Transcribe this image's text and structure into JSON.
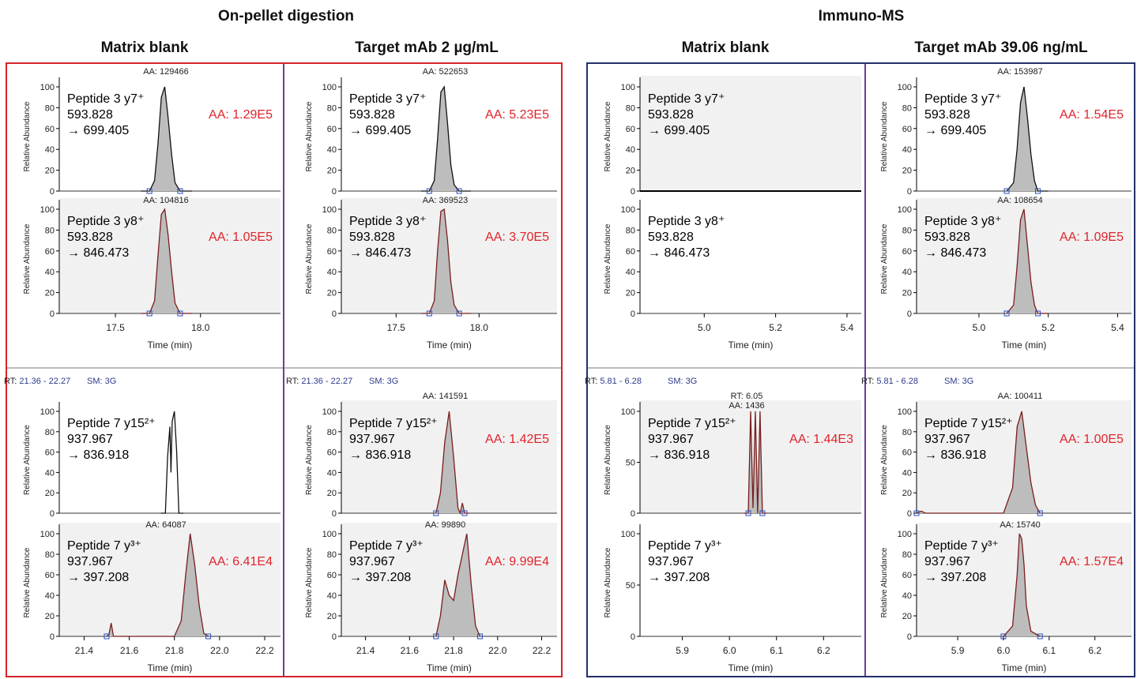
{
  "header": {
    "left_title": "On-pellet digestion",
    "right_title": "Immuno-MS",
    "col1": "Matrix blank",
    "col2": "Target mAb 2 µg/mL",
    "col3": "Matrix blank",
    "col4": "Target mAb 39.06 ng/mL"
  },
  "colors": {
    "left_frame": "#d4242b",
    "right_frame": "#23306b",
    "divider": "#6a3d9a",
    "annotation": "#e0242b",
    "fill": "#bdbdbd"
  },
  "chart_data": [
    {
      "id": "A",
      "type": "line",
      "xlabel": "Time (min)",
      "ylabel": "Relative Abundance",
      "xlim": [
        17.17,
        18.47
      ],
      "xticks": [
        "17.5",
        "18.0"
      ],
      "yticks": [
        "0",
        "20",
        "40",
        "60",
        "80",
        "100"
      ],
      "panels": [
        {
          "col": 1,
          "traces": [
            {
              "top_label": "AA: 129466",
              "peptide": "Peptide 3 y7⁺",
              "precursor": "593.828",
              "fragment": "→ 699.405",
              "aa": "AA: 1.29E5",
              "shaded": false,
              "x": [
                17.65,
                17.7,
                17.73,
                17.75,
                17.77,
                17.79,
                17.81,
                17.83,
                17.85,
                17.88,
                17.95
              ],
              "y": [
                0,
                0,
                10,
                45,
                90,
                100,
                70,
                35,
                8,
                0,
                0
              ]
            },
            {
              "top_label": "AA: 104816",
              "peptide": "Peptide 3 y8⁺",
              "precursor": "593.828",
              "fragment": "→ 846.473",
              "aa": "AA: 1.05E5",
              "shaded": true,
              "x": [
                17.65,
                17.7,
                17.73,
                17.75,
                17.77,
                17.79,
                17.81,
                17.83,
                17.85,
                17.88,
                17.95
              ],
              "y": [
                0,
                0,
                12,
                55,
                95,
                100,
                75,
                40,
                10,
                0,
                0
              ]
            }
          ]
        },
        {
          "col": 2,
          "traces": [
            {
              "top_label": "AA: 522653",
              "peptide": "Peptide 3 y7⁺",
              "precursor": "593.828",
              "fragment": "→ 699.405",
              "aa": "AA: 5.23E5",
              "shaded": false,
              "x": [
                17.65,
                17.7,
                17.73,
                17.75,
                17.77,
                17.79,
                17.81,
                17.83,
                17.85,
                17.88,
                17.95
              ],
              "y": [
                0,
                0,
                10,
                50,
                95,
                100,
                65,
                25,
                6,
                0,
                0
              ]
            },
            {
              "top_label": "AA: 369523",
              "peptide": "Peptide 3 y8⁺",
              "precursor": "593.828",
              "fragment": "→ 846.473",
              "aa": "AA: 3.70E5",
              "shaded": true,
              "x": [
                17.65,
                17.7,
                17.73,
                17.75,
                17.77,
                17.79,
                17.81,
                17.83,
                17.85,
                17.88,
                17.95
              ],
              "y": [
                0,
                0,
                12,
                60,
                98,
                100,
                70,
                30,
                8,
                0,
                0
              ]
            }
          ]
        }
      ]
    },
    {
      "id": "B",
      "type": "line",
      "xlabel": "Time (min)",
      "ylabel": "Relative Abundance",
      "xlim": [
        4.82,
        5.44
      ],
      "xticks": [
        "5.0",
        "5.2",
        "5.4"
      ],
      "yticks": [
        "0",
        "20",
        "40",
        "60",
        "80",
        "100"
      ],
      "panels": [
        {
          "col": 3,
          "traces": [
            {
              "top_label": "",
              "peptide": "Peptide 3 y7⁺",
              "precursor": "593.828",
              "fragment": "→ 699.405",
              "aa": "",
              "shaded": true,
              "x": [
                4.82,
                5.44
              ],
              "y": [
                0,
                0
              ]
            },
            {
              "top_label": "",
              "peptide": "Peptide 3 y8⁺",
              "precursor": "593.828",
              "fragment": "→ 846.473",
              "aa": "",
              "shaded": false,
              "x": [
                4.82,
                5.44
              ],
              "y": [
                0,
                0
              ]
            }
          ]
        },
        {
          "col": 4,
          "traces": [
            {
              "top_label": "AA: 153987",
              "peptide": "Peptide 3 y7⁺",
              "precursor": "593.828",
              "fragment": "→ 699.405",
              "aa": "AA: 1.54E5",
              "shaded": false,
              "x": [
                5.08,
                5.1,
                5.11,
                5.12,
                5.13,
                5.14,
                5.15,
                5.16,
                5.17,
                5.2
              ],
              "y": [
                0,
                8,
                40,
                85,
                100,
                70,
                35,
                10,
                0,
                0
              ]
            },
            {
              "top_label": "AA: 108654",
              "peptide": "Peptide 3 y8⁺",
              "precursor": "593.828",
              "fragment": "→ 846.473",
              "aa": "AA: 1.09E5",
              "shaded": true,
              "x": [
                5.08,
                5.1,
                5.11,
                5.12,
                5.13,
                5.14,
                5.15,
                5.16,
                5.17,
                5.2
              ],
              "y": [
                0,
                8,
                45,
                90,
                100,
                65,
                30,
                8,
                0,
                0
              ]
            }
          ]
        }
      ]
    },
    {
      "id": "C",
      "type": "line",
      "xlabel": "Time (min)",
      "ylabel": "Relative Abundance",
      "range_label": "RT: 21.36 - 22.27",
      "sm_label": "SM: 3G",
      "xlim": [
        21.29,
        22.27
      ],
      "xticks": [
        "21.4",
        "21.6",
        "21.8",
        "22.0",
        "22.2"
      ],
      "yticks": [
        "0",
        "20",
        "40",
        "60",
        "80",
        "100"
      ],
      "panels": [
        {
          "col": 1,
          "traces": [
            {
              "top_label": "",
              "peptide": "Peptide 7 y15²⁺",
              "precursor": "937.967",
              "fragment": "→ 836.918",
              "aa": "",
              "shaded": false,
              "x": [
                21.74,
                21.76,
                21.77,
                21.78,
                21.785,
                21.79,
                21.8,
                21.81,
                21.82,
                21.84
              ],
              "y": [
                0,
                0,
                55,
                85,
                40,
                90,
                100,
                60,
                0,
                0
              ]
            },
            {
              "top_label": "AA: 64087",
              "peptide": "Peptide 7 y³⁺",
              "precursor": "937.967",
              "fragment": "→ 397.208",
              "aa": "AA: 6.41E4",
              "shaded": true,
              "x": [
                21.5,
                21.51,
                21.52,
                21.53,
                21.8,
                21.83,
                21.85,
                21.87,
                21.89,
                21.91,
                21.93,
                21.95
              ],
              "y": [
                0,
                2,
                13,
                0,
                0,
                15,
                60,
                100,
                70,
                30,
                3,
                0
              ]
            }
          ]
        },
        {
          "col": 2,
          "traces": [
            {
              "top_label": "AA: 141591",
              "peptide": "Peptide 7 y15²⁺",
              "precursor": "937.967",
              "fragment": "→ 836.918",
              "aa": "AA: 1.42E5",
              "shaded": true,
              "x": [
                21.72,
                21.74,
                21.76,
                21.78,
                21.8,
                21.82,
                21.83,
                21.84,
                21.85,
                21.87
              ],
              "y": [
                0,
                20,
                70,
                100,
                55,
                5,
                0,
                10,
                0,
                0
              ]
            },
            {
              "top_label": "AA: 99890",
              "peptide": "Peptide 7 y³⁺",
              "precursor": "937.967",
              "fragment": "→ 397.208",
              "aa": "AA: 9.99E4",
              "shaded": true,
              "x": [
                21.72,
                21.74,
                21.76,
                21.78,
                21.8,
                21.82,
                21.84,
                21.86,
                21.88,
                21.9,
                21.92
              ],
              "y": [
                0,
                20,
                55,
                40,
                35,
                60,
                80,
                100,
                50,
                10,
                0
              ]
            }
          ]
        }
      ]
    },
    {
      "id": "D",
      "type": "line",
      "xlabel": "Time (min)",
      "ylabel": "Relative Abundance",
      "range_label": "RT: 5.81 - 6.28",
      "sm_label": "SM: 3G",
      "xlim": [
        5.81,
        6.28
      ],
      "xticks": [
        "5.9",
        "6.0",
        "6.1",
        "6.2"
      ],
      "yticks_top": [
        "0",
        "50",
        "100"
      ],
      "yticks": [
        "0",
        "20",
        "40",
        "60",
        "80",
        "100"
      ],
      "panels": [
        {
          "col": 3,
          "traces": [
            {
              "top_label": "AA: 1436",
              "rt_label": "RT: 6.05",
              "peptide": "Peptide 7 y15²⁺",
              "precursor": "937.967",
              "fragment": "→ 836.918",
              "aa": "AA: 1.44E3",
              "shaded": true,
              "scale50": true,
              "x": [
                6.03,
                6.04,
                6.045,
                6.05,
                6.055,
                6.06,
                6.065,
                6.07,
                6.08
              ],
              "y": [
                0,
                0,
                100,
                5,
                100,
                0,
                100,
                0,
                0
              ]
            },
            {
              "top_label": "",
              "peptide": "Peptide 7 y³⁺",
              "precursor": "937.967",
              "fragment": "→ 397.208",
              "aa": "",
              "shaded": false,
              "scale50": true,
              "x": [
                5.81,
                6.28
              ],
              "y": [
                0,
                0
              ]
            }
          ]
        },
        {
          "col": 4,
          "traces": [
            {
              "top_label": "AA: 100411",
              "peptide": "Peptide 7 y15²⁺",
              "precursor": "937.967",
              "fragment": "→ 836.918",
              "aa": "AA: 1.00E5",
              "shaded": true,
              "x": [
                5.81,
                5.82,
                5.83,
                6.0,
                6.02,
                6.03,
                6.04,
                6.05,
                6.06,
                6.07,
                6.08
              ],
              "y": [
                0,
                2,
                0,
                0,
                25,
                85,
                100,
                65,
                30,
                8,
                0
              ]
            },
            {
              "top_label": "AA: 15740",
              "peptide": "Peptide 7 y³⁺",
              "precursor": "937.967",
              "fragment": "→ 397.208",
              "aa": "AA: 1.57E4",
              "shaded": true,
              "x": [
                6.0,
                6.02,
                6.03,
                6.035,
                6.04,
                6.045,
                6.05,
                6.06,
                6.08
              ],
              "y": [
                0,
                10,
                60,
                100,
                95,
                70,
                30,
                5,
                0
              ]
            }
          ]
        }
      ]
    }
  ]
}
